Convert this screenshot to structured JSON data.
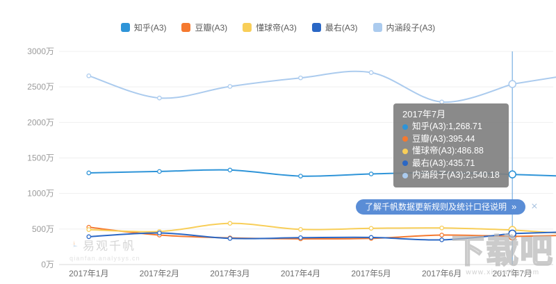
{
  "legend": {
    "items": [
      {
        "label": "知乎(A3)",
        "color": "#2E94D8"
      },
      {
        "label": "豆瓣(A3)",
        "color": "#F5792F"
      },
      {
        "label": "懂球帝(A3)",
        "color": "#F8CE58"
      },
      {
        "label": "最右(A3)",
        "color": "#2A67C5"
      },
      {
        "label": "内涵段子(A3)",
        "color": "#ABCBEE"
      }
    ]
  },
  "chart_data": {
    "type": "line",
    "x": [
      "2017年1月",
      "2017年2月",
      "2017年3月",
      "2017年4月",
      "2017年5月",
      "2017年6月",
      "2017年7月"
    ],
    "unit": "万",
    "yticks": [
      "0万",
      "500万",
      "1000万",
      "1500万",
      "2000万",
      "2500万",
      "3000万"
    ],
    "ylim": [
      0,
      3000
    ],
    "grid": true,
    "legend_position": "top",
    "hover_index": 6,
    "series": [
      {
        "name": "知乎(A3)",
        "color": "#2E94D8",
        "values": [
          1290,
          1310,
          1330,
          1245,
          1275,
          1295,
          1268.71
        ],
        "edge_value": 1248
      },
      {
        "name": "豆瓣(A3)",
        "color": "#F5792F",
        "values": [
          525,
          415,
          375,
          362,
          368,
          415,
          395.44
        ],
        "edge_value": 408
      },
      {
        "name": "懂球帝(A3)",
        "color": "#F8CE58",
        "values": [
          492,
          465,
          580,
          495,
          510,
          515,
          486.88
        ],
        "edge_value": 445
      },
      {
        "name": "最右(A3)",
        "color": "#2A67C5",
        "values": [
          392,
          445,
          368,
          378,
          382,
          348,
          435.71
        ],
        "edge_value": 455
      },
      {
        "name": "内涵段子(A3)",
        "color": "#ABCBEE",
        "values": [
          2656,
          2344,
          2507,
          2627,
          2702,
          2288,
          2540.18
        ],
        "edge_value": 2640
      }
    ]
  },
  "tooltip": {
    "title": "2017年7月",
    "separator": " : ",
    "rows": [
      {
        "label": "知乎(A3)",
        "value": "1,268.71",
        "color": "#2E94D8"
      },
      {
        "label": "豆瓣(A3)",
        "value": "395.44",
        "color": "#F5792F"
      },
      {
        "label": "懂球帝(A3)",
        "value": "486.88",
        "color": "#F8CE58"
      },
      {
        "label": "最右(A3)",
        "value": "435.71",
        "color": "#2A67C5"
      },
      {
        "label": "内涵段子(A3)",
        "value": "2,540.18",
        "color": "#ABCBEE"
      }
    ]
  },
  "notice": {
    "label": "了解千帆数据更新规则及统计口径说明",
    "arrow": "»",
    "close": "×"
  },
  "watermarks": {
    "left": {
      "title": "易观千帆",
      "subtitle": "qianfan.analysys.cn"
    },
    "right": {
      "title": "下载吧",
      "subtitle": "www.xiazaiba.com"
    }
  }
}
